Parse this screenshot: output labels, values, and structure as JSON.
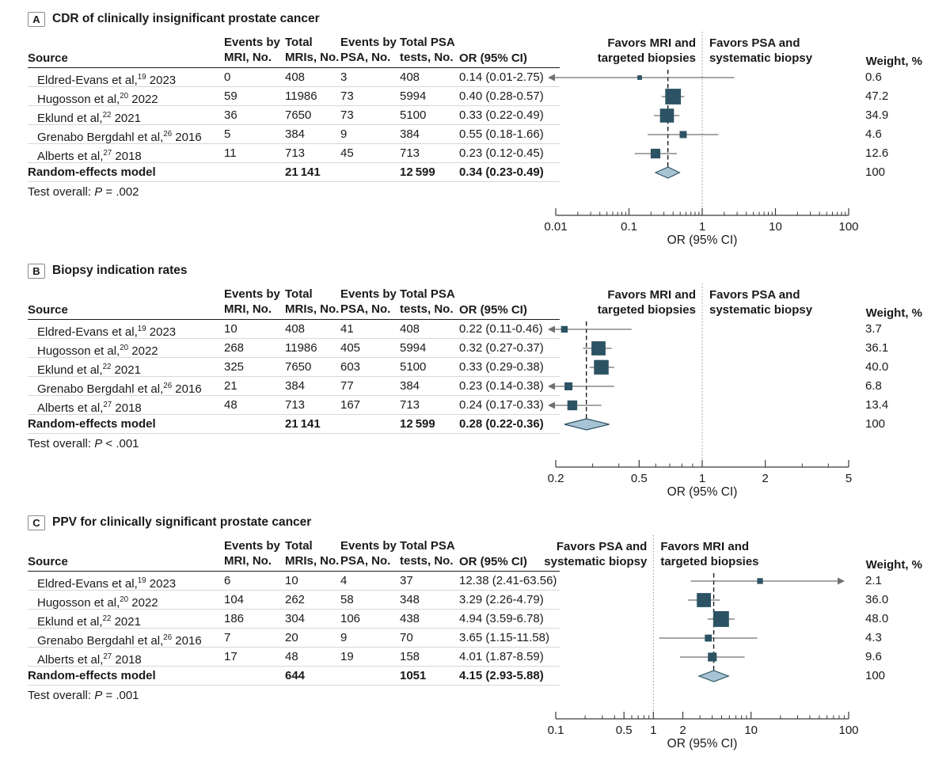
{
  "shared": {
    "axis_label": "OR (95% CI)",
    "weight_header": "Weight, %",
    "columns": {
      "source": "Source",
      "events_mri": [
        "Events by",
        "MRI, No."
      ],
      "total_mri": [
        "Total",
        "MRIs, No."
      ],
      "events_psa": [
        "Events by",
        "PSA, No."
      ],
      "total_psa": [
        "Total PSA",
        "tests, No."
      ],
      "or": "OR (95% CI)"
    },
    "colors": {
      "square": "#2c5364",
      "diamond_fill": "#a8c3d4",
      "diamond_stroke": "#2c5364",
      "ci_line": "#707070",
      "axis": "#3a3a3a",
      "null_line": "#8f8f8f",
      "pooled_line": "#1a1a1a",
      "row_rule": "#d8d8d8",
      "header_rule": "#1a1a1a"
    }
  },
  "chart_data": {
    "type": "forest",
    "x_scale": "log",
    "panels": [
      {
        "letter": "A",
        "title": "CDR of clinically insignificant prostate cancer",
        "favors_left": [
          "Favors MRI and",
          "targeted biopsies"
        ],
        "favors_right": [
          "Favors PSA and",
          "systematic biopsy"
        ],
        "axis": {
          "min": 0.01,
          "max": 100,
          "ticks": [
            0.01,
            0.1,
            1,
            10,
            100
          ],
          "tick_labels": [
            "0.01",
            "0.1",
            "1",
            "10",
            "100"
          ]
        },
        "test_overall": {
          "prefix": "Test overall: ",
          "p": "P",
          "value": " = .002"
        },
        "studies": [
          {
            "source": "Eldred-Evans et al,",
            "ref": "19",
            "year": "2023",
            "events_mri": "0",
            "total_mri": "408",
            "events_psa": "3",
            "total_psa": "408",
            "or_ci": "0.14 (0.01-2.75)",
            "or": 0.14,
            "ci_low": 0.01,
            "ci_high": 2.75,
            "weight": "0.6",
            "clip_low": true,
            "clip_high": false
          },
          {
            "source": "Hugosson et al,",
            "ref": "20",
            "year": "2022",
            "events_mri": "59",
            "total_mri": "11986",
            "events_psa": "73",
            "total_psa": "5994",
            "or_ci": "0.40 (0.28-0.57)",
            "or": 0.4,
            "ci_low": 0.28,
            "ci_high": 0.57,
            "weight": "47.2",
            "clip_low": false,
            "clip_high": false
          },
          {
            "source": "Eklund et al,",
            "ref": "22",
            "year": "2021",
            "events_mri": "36",
            "total_mri": "7650",
            "events_psa": "73",
            "total_psa": "5100",
            "or_ci": "0.33 (0.22-0.49)",
            "or": 0.33,
            "ci_low": 0.22,
            "ci_high": 0.49,
            "weight": "34.9",
            "clip_low": false,
            "clip_high": false
          },
          {
            "source": "Grenabo Bergdahl et al,",
            "ref": "26",
            "year": "2016",
            "events_mri": "5",
            "total_mri": "384",
            "events_psa": "9",
            "total_psa": "384",
            "or_ci": "0.55 (0.18-1.66)",
            "or": 0.55,
            "ci_low": 0.18,
            "ci_high": 1.66,
            "weight": "4.6",
            "clip_low": false,
            "clip_high": false
          },
          {
            "source": "Alberts et al,",
            "ref": "27",
            "year": "2018",
            "events_mri": "11",
            "total_mri": "713",
            "events_psa": "45",
            "total_psa": "713",
            "or_ci": "0.23 (0.12-0.45)",
            "or": 0.23,
            "ci_low": 0.12,
            "ci_high": 0.45,
            "weight": "12.6",
            "clip_low": false,
            "clip_high": false
          }
        ],
        "pooled": {
          "label": "Random-effects model",
          "total_mri": "21 141",
          "total_psa": "12 599",
          "or_ci": "0.34 (0.23-0.49)",
          "or": 0.34,
          "ci_low": 0.23,
          "ci_high": 0.49,
          "weight": "100"
        }
      },
      {
        "letter": "B",
        "title": "Biopsy indication rates",
        "favors_left": [
          "Favors MRI and",
          "targeted biopsies"
        ],
        "favors_right": [
          "Favors PSA and",
          "systematic biopsy"
        ],
        "axis": {
          "min": 0.2,
          "max": 5,
          "ticks": [
            0.2,
            0.5,
            1,
            2,
            5
          ],
          "tick_labels": [
            "0.2",
            "0.5",
            "1",
            "2",
            "5"
          ]
        },
        "test_overall": {
          "prefix": "Test overall: ",
          "p": "P",
          "value": " < .001"
        },
        "studies": [
          {
            "source": "Eldred-Evans et al,",
            "ref": "19",
            "year": "2023",
            "events_mri": "10",
            "total_mri": "408",
            "events_psa": "41",
            "total_psa": "408",
            "or_ci": "0.22 (0.11-0.46)",
            "or": 0.22,
            "ci_low": 0.11,
            "ci_high": 0.46,
            "weight": "3.7",
            "clip_low": true,
            "clip_high": false
          },
          {
            "source": "Hugosson et al,",
            "ref": "20",
            "year": "2022",
            "events_mri": "268",
            "total_mri": "11986",
            "events_psa": "405",
            "total_psa": "5994",
            "or_ci": "0.32 (0.27-0.37)",
            "or": 0.32,
            "ci_low": 0.27,
            "ci_high": 0.37,
            "weight": "36.1",
            "clip_low": false,
            "clip_high": false
          },
          {
            "source": "Eklund et al,",
            "ref": "22",
            "year": "2021",
            "events_mri": "325",
            "total_mri": "7650",
            "events_psa": "603",
            "total_psa": "5100",
            "or_ci": "0.33 (0.29-0.38)",
            "or": 0.33,
            "ci_low": 0.29,
            "ci_high": 0.38,
            "weight": "40.0",
            "clip_low": false,
            "clip_high": false
          },
          {
            "source": "Grenabo Bergdahl et al,",
            "ref": "26",
            "year": "2016",
            "events_mri": "21",
            "total_mri": "384",
            "events_psa": "77",
            "total_psa": "384",
            "or_ci": "0.23 (0.14-0.38)",
            "or": 0.23,
            "ci_low": 0.14,
            "ci_high": 0.38,
            "weight": "6.8",
            "clip_low": true,
            "clip_high": false
          },
          {
            "source": "Alberts et al,",
            "ref": "27",
            "year": "2018",
            "events_mri": "48",
            "total_mri": "713",
            "events_psa": "167",
            "total_psa": "713",
            "or_ci": "0.24 (0.17-0.33)",
            "or": 0.24,
            "ci_low": 0.17,
            "ci_high": 0.33,
            "weight": "13.4",
            "clip_low": true,
            "clip_high": false
          }
        ],
        "pooled": {
          "label": "Random-effects model",
          "total_mri": "21 141",
          "total_psa": "12 599",
          "or_ci": "0.28 (0.22-0.36)",
          "or": 0.28,
          "ci_low": 0.22,
          "ci_high": 0.36,
          "weight": "100"
        }
      },
      {
        "letter": "C",
        "title": "PPV for clinically significant prostate cancer",
        "favors_left": [
          "Favors PSA and",
          "systematic biopsy"
        ],
        "favors_right": [
          "Favors MRI and",
          "targeted biopsies"
        ],
        "axis": {
          "min": 0.1,
          "max": 100,
          "ticks": [
            0.1,
            0.5,
            1,
            2,
            10,
            100
          ],
          "tick_labels": [
            "0.1",
            "0.5",
            "1",
            "2",
            "10",
            "100"
          ]
        },
        "test_overall": {
          "prefix": "Test overall: ",
          "p": "P",
          "value": " = .001"
        },
        "studies": [
          {
            "source": "Eldred-Evans et al,",
            "ref": "19",
            "year": "2023",
            "events_mri": "6",
            "total_mri": "10",
            "events_psa": "4",
            "total_psa": "37",
            "or_ci": "12.38 (2.41-63.56)",
            "or": 12.38,
            "ci_low": 2.41,
            "ci_high": 63.56,
            "weight": "2.1",
            "clip_low": false,
            "clip_high": true
          },
          {
            "source": "Hugosson et al,",
            "ref": "20",
            "year": "2022",
            "events_mri": "104",
            "total_mri": "262",
            "events_psa": "58",
            "total_psa": "348",
            "or_ci": "3.29 (2.26-4.79)",
            "or": 3.29,
            "ci_low": 2.26,
            "ci_high": 4.79,
            "weight": "36.0",
            "clip_low": false,
            "clip_high": false
          },
          {
            "source": "Eklund et al,",
            "ref": "22",
            "year": "2021",
            "events_mri": "186",
            "total_mri": "304",
            "events_psa": "106",
            "total_psa": "438",
            "or_ci": "4.94 (3.59-6.78)",
            "or": 4.94,
            "ci_low": 3.59,
            "ci_high": 6.78,
            "weight": "48.0",
            "clip_low": false,
            "clip_high": false
          },
          {
            "source": "Grenabo Bergdahl et al,",
            "ref": "26",
            "year": "2016",
            "events_mri": "7",
            "total_mri": "20",
            "events_psa": "9",
            "total_psa": "70",
            "or_ci": "3.65 (1.15-11.58)",
            "or": 3.65,
            "ci_low": 1.15,
            "ci_high": 11.58,
            "weight": "4.3",
            "clip_low": false,
            "clip_high": false
          },
          {
            "source": "Alberts et al,",
            "ref": "27",
            "year": "2018",
            "events_mri": "17",
            "total_mri": "48",
            "events_psa": "19",
            "total_psa": "158",
            "or_ci": "4.01 (1.87-8.59)",
            "or": 4.01,
            "ci_low": 1.87,
            "ci_high": 8.59,
            "weight": "9.6",
            "clip_low": false,
            "clip_high": false
          }
        ],
        "pooled": {
          "label": "Random-effects model",
          "total_mri": "644",
          "total_psa": "1051",
          "or_ci": "4.15 (2.93-5.88)",
          "or": 4.15,
          "ci_low": 2.93,
          "ci_high": 5.88,
          "weight": "100"
        }
      }
    ]
  }
}
